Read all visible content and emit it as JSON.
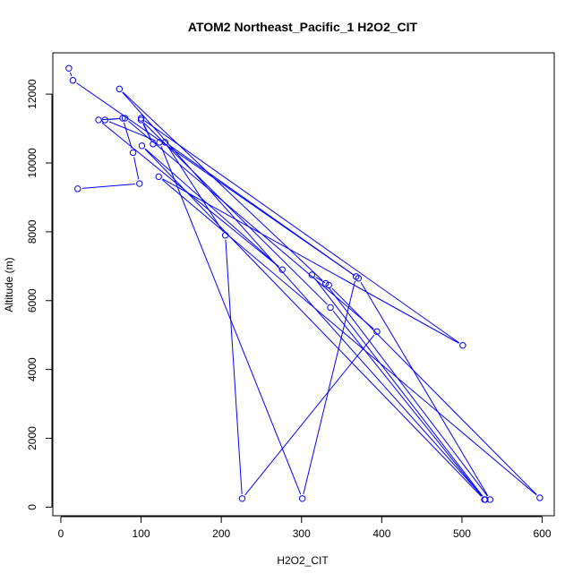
{
  "chart_data": {
    "type": "line",
    "title": "ATOM2 Northeast_Pacific_1 H2O2_CIT",
    "xlabel": "H2O2_CIT",
    "ylabel": "Altitude (m)",
    "xlim": [
      -10,
      615
    ],
    "ylim": [
      -250,
      13200
    ],
    "x_ticks": [
      0,
      100,
      200,
      300,
      400,
      500,
      600
    ],
    "y_ticks": [
      0,
      2000,
      4000,
      6000,
      8000,
      10000,
      12000
    ],
    "grid": false,
    "line_color": "#0000ff",
    "series": [
      {
        "points": [
          {
            "x": 10,
            "y": 12750
          },
          {
            "x": 15,
            "y": 12400
          },
          {
            "x": 371,
            "y": 6650
          },
          {
            "x": 535,
            "y": 220
          },
          {
            "x": 330,
            "y": 6500
          },
          {
            "x": 73,
            "y": 12150
          },
          {
            "x": 529,
            "y": 220
          },
          {
            "x": 313,
            "y": 6750
          },
          {
            "x": 334,
            "y": 6450
          },
          {
            "x": 597,
            "y": 270
          },
          {
            "x": 122,
            "y": 9600
          },
          {
            "x": 501,
            "y": 4700
          },
          {
            "x": 100,
            "y": 11300
          },
          {
            "x": 115,
            "y": 10550
          },
          {
            "x": 100,
            "y": 11250
          },
          {
            "x": 336,
            "y": 5800
          },
          {
            "x": 528,
            "y": 220
          },
          {
            "x": 101,
            "y": 10500
          },
          {
            "x": 276,
            "y": 6900
          },
          {
            "x": 47,
            "y": 11250
          },
          {
            "x": 80,
            "y": 11300
          },
          {
            "x": 394,
            "y": 5100
          },
          {
            "x": 226,
            "y": 250
          },
          {
            "x": 205,
            "y": 7900
          },
          {
            "x": 130,
            "y": 10600
          },
          {
            "x": 368,
            "y": 6700
          },
          {
            "x": 301,
            "y": 250
          },
          {
            "x": 123,
            "y": 10600
          },
          {
            "x": 55,
            "y": 11250
          },
          {
            "x": 77,
            "y": 11300
          },
          {
            "x": 90,
            "y": 10300
          },
          {
            "x": 98,
            "y": 9400
          },
          {
            "x": 21,
            "y": 9250
          }
        ]
      }
    ]
  }
}
